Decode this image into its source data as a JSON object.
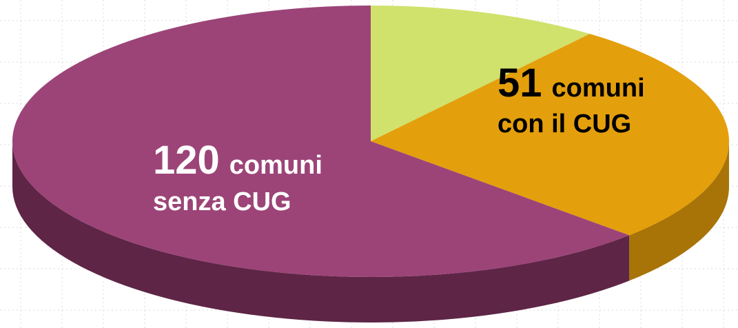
{
  "chart_data": {
    "type": "pie3d",
    "categories": [
      null,
      [
        "comuni",
        "con il CUG"
      ],
      [
        "comuni",
        "senza CUG"
      ]
    ],
    "values": [
      20,
      51,
      120
    ],
    "colors": [
      "#d0e26c",
      "#e49f0c",
      "#9c4478"
    ],
    "side_colors": [
      "#9aa84e",
      "#a87407",
      "#5e2546"
    ],
    "label_colors": [
      null,
      "#000000",
      "#ffffff"
    ]
  }
}
